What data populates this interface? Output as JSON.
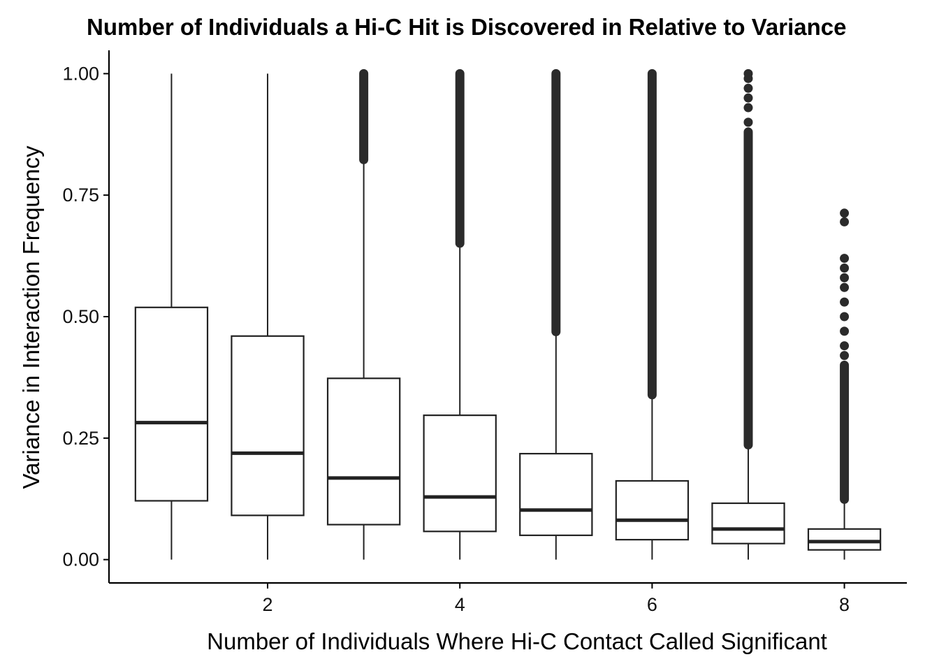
{
  "chart_data": {
    "type": "boxplot",
    "title": "Number of Individuals a Hi-C Hit is Discovered in Relative to Variance",
    "xlabel": "Number of Individuals Where Hi-C Contact Called Significant",
    "ylabel": "Variance in Interaction Frequency",
    "xlim": [
      0.35,
      8.65
    ],
    "ylim": [
      -0.048,
      1.048
    ],
    "x_ticks": [
      2,
      4,
      6,
      8
    ],
    "y_ticks": [
      0.0,
      0.25,
      0.5,
      0.75,
      1.0
    ],
    "x_tick_labels": [
      "2",
      "4",
      "6",
      "8"
    ],
    "y_tick_labels": [
      "0.00",
      "0.25",
      "0.50",
      "0.75",
      "1.00"
    ],
    "grid": false,
    "box_color": "#222222",
    "outlier_color": "#2b2b2b",
    "boxes": [
      {
        "x": 1,
        "whisker_low": 0.0,
        "q1": 0.121,
        "median": 0.282,
        "q3": 0.519,
        "whisker_high": 1.0,
        "outlier_band": null,
        "outlier_points": []
      },
      {
        "x": 2,
        "whisker_low": 0.0,
        "q1": 0.091,
        "median": 0.219,
        "q3": 0.46,
        "whisker_high": 1.0,
        "outlier_band": null,
        "outlier_points": []
      },
      {
        "x": 3,
        "whisker_low": 0.0,
        "q1": 0.072,
        "median": 0.168,
        "q3": 0.373,
        "whisker_high": 0.823,
        "outlier_band": [
          0.823,
          1.0
        ],
        "outlier_points": []
      },
      {
        "x": 4,
        "whisker_low": 0.0,
        "q1": 0.058,
        "median": 0.129,
        "q3": 0.297,
        "whisker_high": 0.651,
        "outlier_band": [
          0.651,
          1.0
        ],
        "outlier_points": []
      },
      {
        "x": 5,
        "whisker_low": 0.0,
        "q1": 0.05,
        "median": 0.102,
        "q3": 0.218,
        "whisker_high": 0.469,
        "outlier_band": [
          0.469,
          1.0
        ],
        "outlier_points": []
      },
      {
        "x": 6,
        "whisker_low": 0.0,
        "q1": 0.041,
        "median": 0.081,
        "q3": 0.162,
        "whisker_high": 0.339,
        "outlier_band": [
          0.339,
          1.0
        ],
        "outlier_points": []
      },
      {
        "x": 7,
        "whisker_low": 0.0,
        "q1": 0.033,
        "median": 0.063,
        "q3": 0.116,
        "whisker_high": 0.236,
        "outlier_band": [
          0.236,
          0.88
        ],
        "outlier_points": [
          0.9,
          0.93,
          0.95,
          0.97,
          0.99,
          1.0
        ]
      },
      {
        "x": 8,
        "whisker_low": 0.0,
        "q1": 0.02,
        "median": 0.037,
        "q3": 0.063,
        "whisker_high": 0.124,
        "outlier_band": [
          0.124,
          0.4
        ],
        "outlier_points": [
          0.42,
          0.44,
          0.47,
          0.5,
          0.53,
          0.56,
          0.58,
          0.6,
          0.62,
          0.695,
          0.713
        ]
      }
    ]
  }
}
